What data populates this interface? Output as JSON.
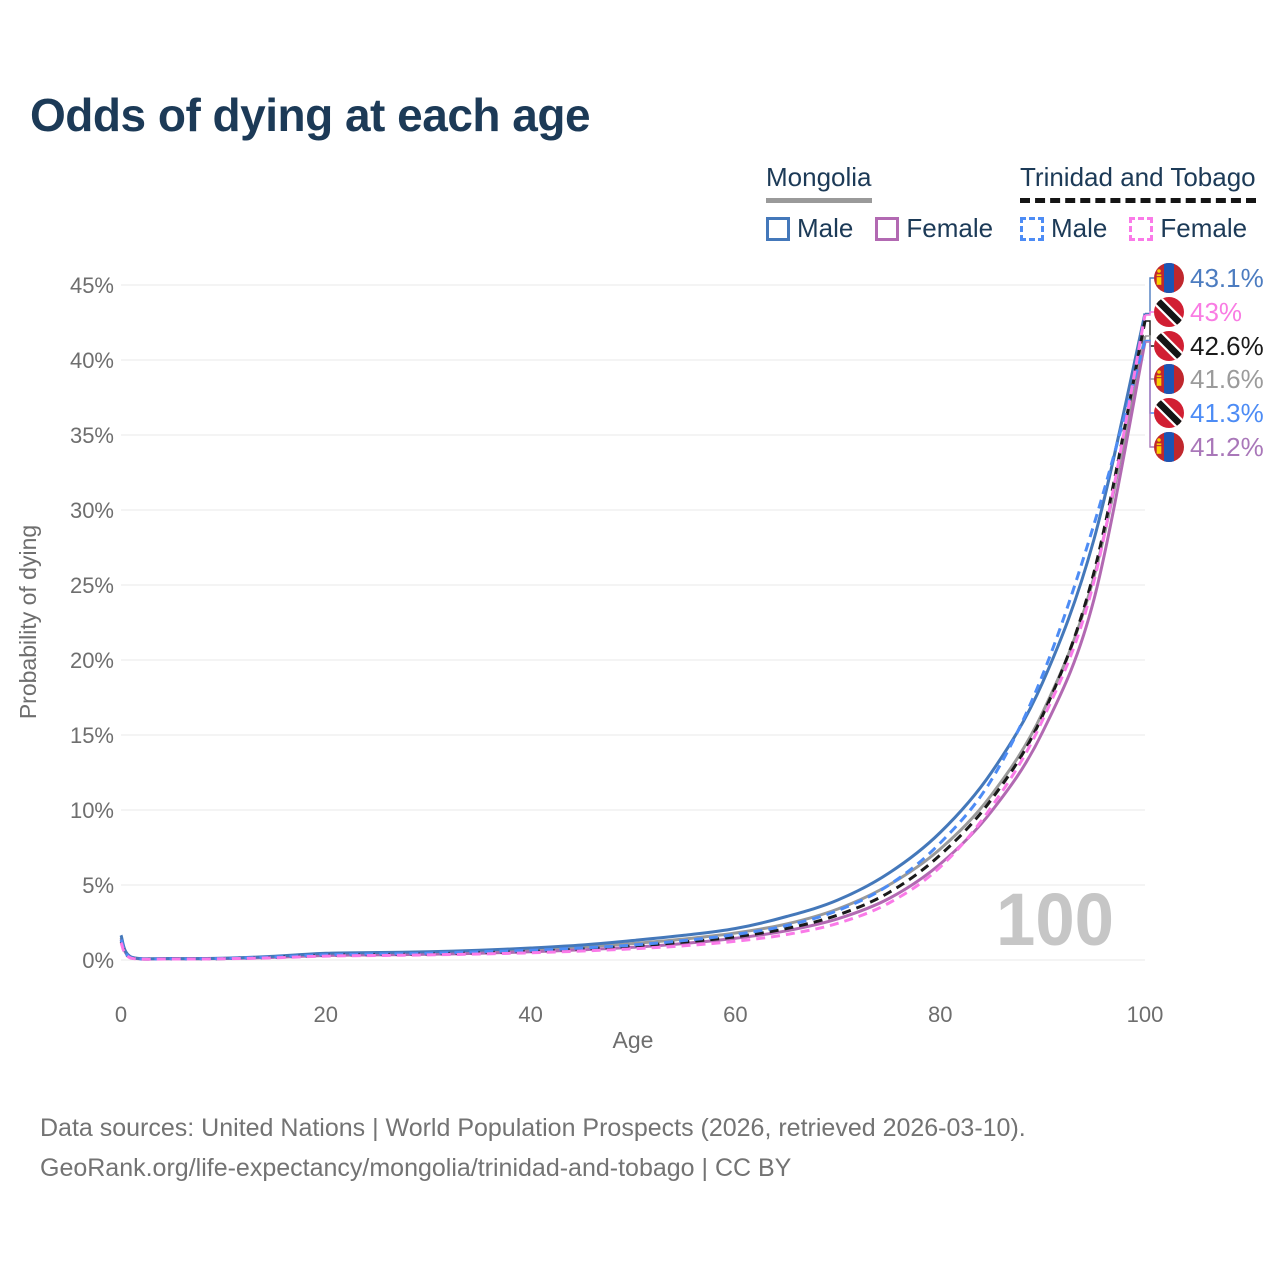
{
  "title": "Odds of dying at each age",
  "legend": {
    "groups": [
      {
        "name": "Mongolia",
        "line_style": "solid",
        "line_color": "#9a9a9a",
        "items": [
          {
            "label": "Male",
            "color": "#4478ba",
            "dashed": false
          },
          {
            "label": "Female",
            "color": "#b269b2",
            "dashed": false
          }
        ]
      },
      {
        "name": "Trinidad and Tobago",
        "line_style": "dashed",
        "line_color": "#151515",
        "items": [
          {
            "label": "Male",
            "color": "#4d8cf5",
            "dashed": true
          },
          {
            "label": "Female",
            "color": "#fa7ae8",
            "dashed": true
          }
        ]
      }
    ]
  },
  "chart_data": {
    "type": "line",
    "title": "Odds of dying at each age",
    "xlabel": "Age",
    "ylabel": "Probability of dying",
    "xlim": [
      0,
      100
    ],
    "ylim": [
      0,
      45
    ],
    "xticks": [
      0,
      20,
      40,
      60,
      80,
      100
    ],
    "yticks": [
      "0%",
      "5%",
      "10%",
      "15%",
      "20%",
      "25%",
      "30%",
      "35%",
      "40%",
      "45%"
    ],
    "grid": "horizontal",
    "age_indicator": "100",
    "x": [
      0,
      1,
      5,
      10,
      15,
      20,
      25,
      30,
      35,
      40,
      45,
      50,
      55,
      60,
      65,
      70,
      75,
      80,
      85,
      90,
      95,
      100
    ],
    "series": [
      {
        "id": "mongolia-all",
        "name": "Mongolia (all)",
        "color": "#9a9a9a",
        "dashed": false,
        "values": [
          1.5,
          0.18,
          0.09,
          0.11,
          0.22,
          0.4,
          0.45,
          0.5,
          0.58,
          0.7,
          0.88,
          1.1,
          1.4,
          1.8,
          2.4,
          3.4,
          5.0,
          7.4,
          11.0,
          16.5,
          25.5,
          41.6
        ]
      },
      {
        "id": "mongolia-female",
        "name": "Mongolia Female",
        "color": "#b269b2",
        "dashed": false,
        "values": [
          1.4,
          0.16,
          0.08,
          0.1,
          0.18,
          0.3,
          0.34,
          0.38,
          0.45,
          0.55,
          0.68,
          0.85,
          1.1,
          1.45,
          1.95,
          2.75,
          4.1,
          6.4,
          9.9,
          15.2,
          24.0,
          41.2
        ]
      },
      {
        "id": "mongolia-male",
        "name": "Mongolia Male",
        "color": "#4478ba",
        "dashed": false,
        "values": [
          1.65,
          0.2,
          0.1,
          0.12,
          0.25,
          0.45,
          0.5,
          0.55,
          0.65,
          0.8,
          1.0,
          1.3,
          1.65,
          2.1,
          2.9,
          4.0,
          5.8,
          8.5,
          12.5,
          18.5,
          28.0,
          43.1
        ]
      },
      {
        "id": "trinidad-and-tobago-all",
        "name": "Trinidad and Tobago (all)",
        "color": "#1a1a1a",
        "dashed": true,
        "values": [
          1.25,
          0.14,
          0.08,
          0.09,
          0.18,
          0.32,
          0.36,
          0.4,
          0.48,
          0.58,
          0.73,
          0.93,
          1.2,
          1.55,
          2.1,
          3.0,
          4.5,
          7.0,
          10.7,
          16.3,
          25.8,
          42.6
        ]
      },
      {
        "id": "trinidad-and-tobago-male",
        "name": "Trinidad and Tobago Male",
        "color": "#4d8cf5",
        "dashed": true,
        "values": [
          1.35,
          0.15,
          0.08,
          0.1,
          0.2,
          0.35,
          0.4,
          0.45,
          0.55,
          0.65,
          0.8,
          1.0,
          1.3,
          1.7,
          2.3,
          3.3,
          5.0,
          7.8,
          12.0,
          19.0,
          29.0,
          41.3
        ]
      },
      {
        "id": "trinidad-and-tobago-female",
        "name": "Trinidad and Tobago Female",
        "color": "#fa7ae8",
        "dashed": true,
        "values": [
          1.15,
          0.12,
          0.07,
          0.08,
          0.15,
          0.26,
          0.3,
          0.34,
          0.4,
          0.48,
          0.6,
          0.75,
          0.95,
          1.25,
          1.7,
          2.45,
          3.8,
          6.2,
          10.2,
          16.0,
          25.2,
          43.0
        ]
      }
    ],
    "end_labels": [
      {
        "series": "mongolia-male",
        "text": "43.1%",
        "color": "#4c7cc0",
        "flag": "mongolia-flag-icon"
      },
      {
        "series": "trinidad-and-tobago-female",
        "text": "43%",
        "color": "#f97ce3",
        "flag": "trinidad-and-tobago-flag-icon"
      },
      {
        "series": "trinidad-and-tobago-all",
        "text": "42.6%",
        "color": "#1a1a1a",
        "flag": "trinidad-and-tobago-flag-icon"
      },
      {
        "series": "mongolia-all",
        "text": "41.6%",
        "color": "#9b9b9b",
        "flag": "mongolia-flag-icon"
      },
      {
        "series": "trinidad-and-tobago-male",
        "text": "41.3%",
        "color": "#4d8cf5",
        "flag": "trinidad-and-tobago-flag-icon"
      },
      {
        "series": "mongolia-female",
        "text": "41.2%",
        "color": "#a977b9",
        "flag": "mongolia-flag-icon"
      }
    ]
  },
  "footer": {
    "line1": "Data sources: United Nations | World Population Prospects (2026, retrieved 2026-03-10).",
    "line2": "GeoRank.org/life-expectancy/mongolia/trinidad-and-tobago | CC BY"
  }
}
